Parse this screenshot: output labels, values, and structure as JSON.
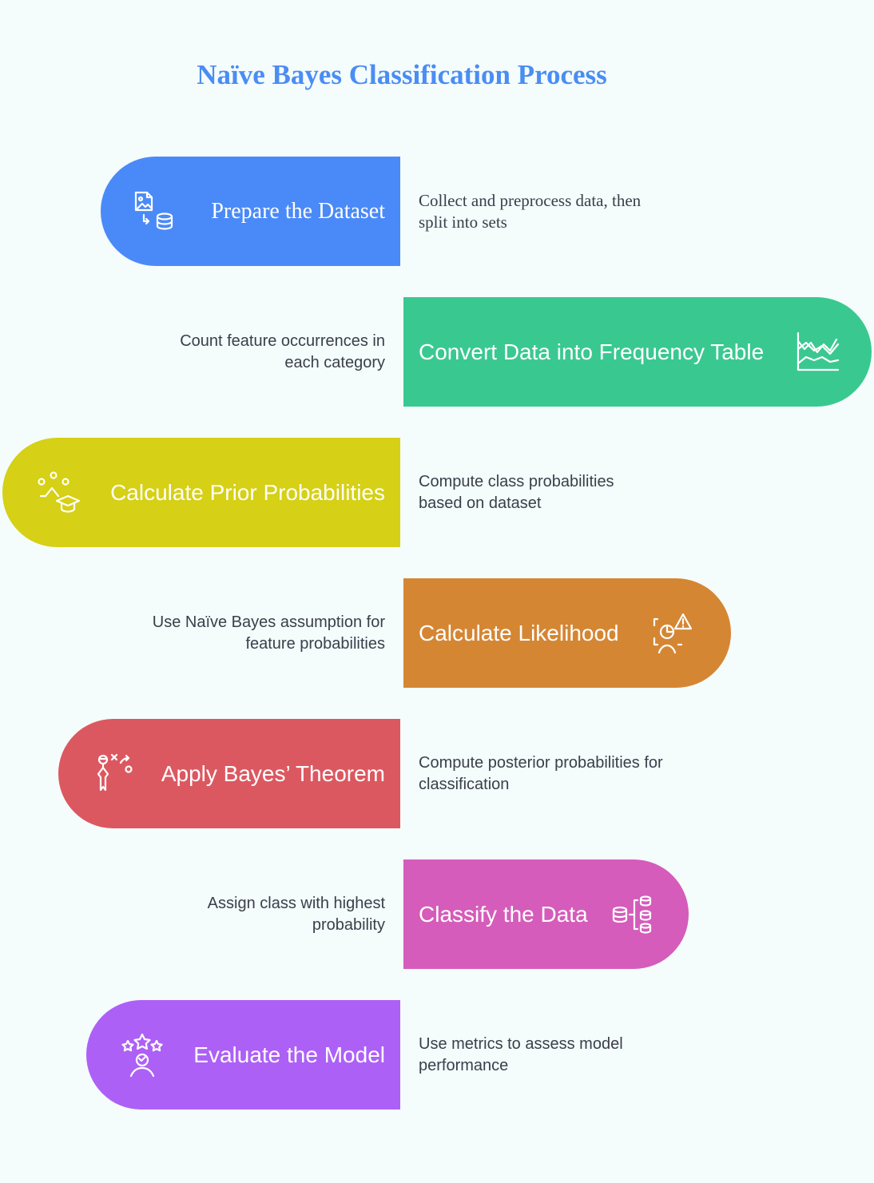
{
  "title": "Naïve Bayes Classification Process",
  "colors": {
    "background": "#f4fcfc",
    "title": "#4a8df3",
    "step1": "#4a8af8",
    "step2": "#3ac891",
    "step3": "#d6d016",
    "step4": "#d58633",
    "step5": "#dc5860",
    "step6": "#d55cba",
    "step7": "#ad60f6"
  },
  "steps": [
    {
      "label": "Prepare the Dataset",
      "description": "Collect and preprocess data, then split into sets",
      "icon": "image-database-icon"
    },
    {
      "label": "Convert Data into Frequency Table",
      "description": "Count feature occurrences in each category",
      "icon": "line-chart-icon"
    },
    {
      "label": "Calculate Prior Probabilities",
      "description": "Compute class probabilities based on dataset",
      "icon": "graduation-cap-network-icon"
    },
    {
      "label": "Calculate Likelihood",
      "description": "Use Naïve Bayes assumption for feature probabilities",
      "icon": "person-alert-chart-icon"
    },
    {
      "label": "Apply Bayes’ Theorem",
      "description": "Compute posterior probabilities for classification",
      "icon": "strategy-person-icon"
    },
    {
      "label": "Classify the Data",
      "description": "Assign class with highest probability",
      "icon": "database-branch-icon"
    },
    {
      "label": "Evaluate the Model",
      "description": "Use metrics to assess model performance",
      "icon": "person-stars-icon"
    }
  ]
}
